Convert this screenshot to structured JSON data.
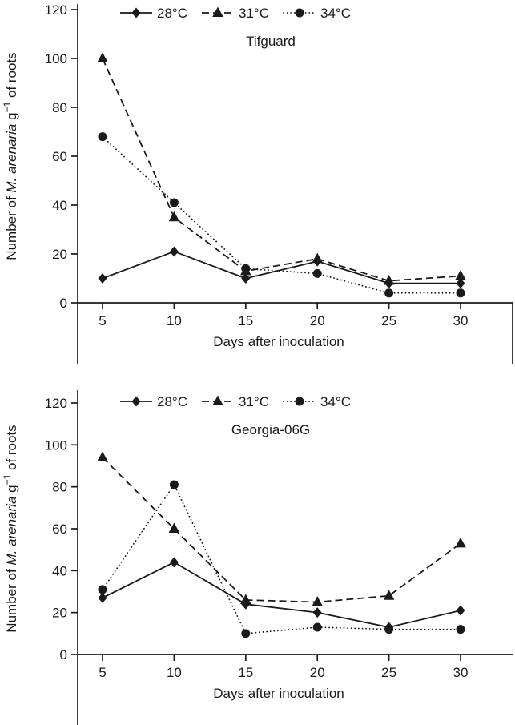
{
  "figure": {
    "background": "#ffffff",
    "ink_color": "#1a1a1a"
  },
  "chart_data": [
    {
      "type": "line",
      "title": "Tifguard",
      "xlabel": "Days after inoculation",
      "ylabel": "Number of M. arenaria g−1 of roots",
      "ylabel_parts": [
        {
          "text": "Number of ",
          "style": "normal"
        },
        {
          "text": "M. arenaria",
          "style": "italic"
        },
        {
          "text": " g",
          "style": "normal"
        },
        {
          "text": "−1",
          "style": "super"
        },
        {
          "text": " of roots",
          "style": "normal"
        }
      ],
      "x": [
        5,
        10,
        15,
        20,
        25,
        30
      ],
      "ylim": [
        0,
        120
      ],
      "yticks": [
        0,
        20,
        40,
        60,
        80,
        100,
        120
      ],
      "grid": false,
      "legend_position": "top",
      "series": [
        {
          "name": "28°C",
          "marker": "diamond",
          "line": "solid",
          "values": [
            10,
            21,
            10,
            17,
            8,
            8
          ]
        },
        {
          "name": "31°C",
          "marker": "triangle",
          "line": "dashed",
          "values": [
            100,
            35,
            13,
            18,
            9,
            11
          ]
        },
        {
          "name": "34°C",
          "marker": "circle",
          "line": "dotted",
          "values": [
            68,
            41,
            14,
            12,
            4,
            4
          ]
        }
      ]
    },
    {
      "type": "line",
      "title": "Georgia-06G",
      "xlabel": "Days after inoculation",
      "ylabel": "Number of M. arenaria g−1 of roots",
      "ylabel_parts": [
        {
          "text": "Number of ",
          "style": "normal"
        },
        {
          "text": "M. arenaria",
          "style": "italic"
        },
        {
          "text": " g",
          "style": "normal"
        },
        {
          "text": "−1",
          "style": "super"
        },
        {
          "text": " of roots",
          "style": "normal"
        }
      ],
      "x": [
        5,
        10,
        15,
        20,
        25,
        30
      ],
      "ylim": [
        0,
        120
      ],
      "yticks": [
        0,
        20,
        40,
        60,
        80,
        100,
        120
      ],
      "grid": false,
      "legend_position": "top",
      "series": [
        {
          "name": "28°C",
          "marker": "diamond",
          "line": "solid",
          "values": [
            27,
            44,
            24,
            20,
            13,
            21
          ]
        },
        {
          "name": "31°C",
          "marker": "triangle",
          "line": "dashed",
          "values": [
            94,
            60,
            26,
            25,
            28,
            53
          ]
        },
        {
          "name": "34°C",
          "marker": "circle",
          "line": "dotted",
          "values": [
            31,
            81,
            10,
            13,
            12,
            12
          ]
        }
      ]
    }
  ]
}
